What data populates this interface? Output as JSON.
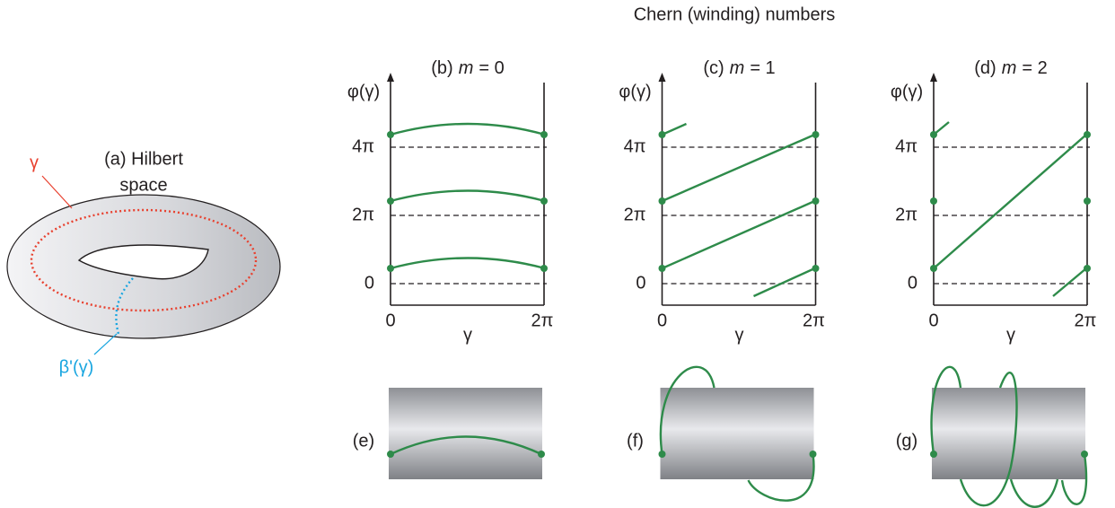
{
  "title": "Chern (winding) numbers",
  "hilbert": {
    "line1": "(a) Hilbert",
    "line2": "space",
    "loop_label": "γ",
    "fiber_label": "β'(γ)"
  },
  "plots": [
    {
      "prefix": "(b)",
      "variable": "m",
      "equals": "= 0",
      "y_label": "φ(γ)",
      "y_ticks": [
        "0",
        "2π",
        "4π"
      ],
      "x_ticks": [
        "0",
        "2π"
      ],
      "x_label": "γ",
      "cylinder_label": "(e)"
    },
    {
      "prefix": "(c)",
      "variable": "m",
      "equals": "= 1",
      "y_label": "φ(γ)",
      "y_ticks": [
        "0",
        "2π",
        "4π"
      ],
      "x_ticks": [
        "0",
        "2π"
      ],
      "x_label": "γ",
      "cylinder_label": "(f)"
    },
    {
      "prefix": "(d)",
      "variable": "m",
      "equals": "= 2",
      "y_label": "φ(γ)",
      "y_ticks": [
        "0",
        "2π",
        "4π"
      ],
      "x_ticks": [
        "0",
        "2π"
      ],
      "x_label": "γ",
      "cylinder_label": "(g)"
    }
  ]
}
